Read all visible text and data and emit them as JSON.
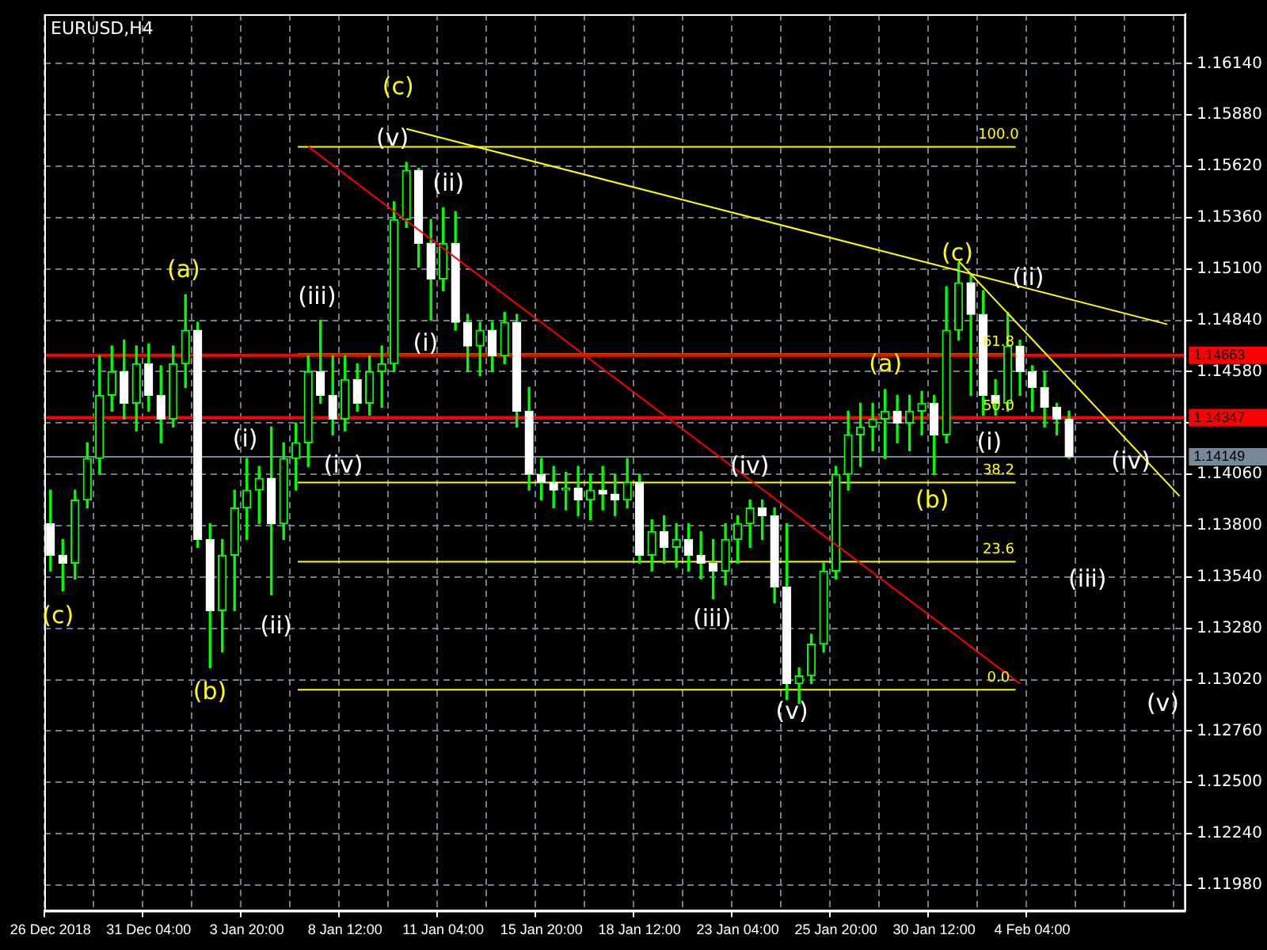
{
  "chart_data": {
    "type": "candlestick",
    "title": "EURUSD,H4",
    "categories": [
      "26 Dec 2018",
      null,
      null,
      null,
      null,
      null,
      null,
      null,
      "31 Dec 04:00",
      null,
      null,
      null,
      null,
      null,
      null,
      null,
      "3 Jan 20:00",
      null,
      null,
      null,
      null,
      null,
      null,
      null,
      "8 Jan 12:00",
      null,
      null,
      null,
      null,
      null,
      null,
      null,
      "11 Jan 04:00",
      null,
      null,
      null,
      null,
      null,
      null,
      null,
      "15 Jan 20:00",
      null,
      null,
      null,
      null,
      null,
      null,
      null,
      "18 Jan 12:00",
      null,
      null,
      null,
      null,
      null,
      null,
      null,
      "23 Jan 04:00",
      null,
      null,
      null,
      null,
      null,
      null,
      null,
      "25 Jan 20:00",
      null,
      null,
      null,
      null,
      null,
      null,
      null,
      "30 Jan 12:00",
      null,
      null,
      null,
      null,
      null,
      null,
      null,
      "4 Feb 04:00",
      null,
      null,
      null,
      null,
      null,
      null,
      null,
      null,
      null,
      null,
      null,
      null
    ],
    "color": "#00ff00",
    "colors": [
      "#ffffff",
      "#ffffff",
      "#00ff00",
      "#00ff00",
      "#00ff00",
      "#00ff00",
      "#ffffff",
      "#00ff00",
      "#ffffff",
      "#ffffff",
      "#00ff00",
      "#00ff00",
      "#ffffff",
      "#ffffff",
      "#00ff00",
      "#00ff00",
      "#00ff00",
      "#00ff00",
      "#ffffff",
      "#00ff00",
      "#00ff00",
      "#00ff00",
      "#ffffff",
      "#ffffff",
      "#00ff00",
      "#ffffff",
      "#00ff00",
      "#00ff00",
      "#00ff00",
      "#00ff00",
      "#ffffff",
      "#ffffff",
      "#00ff00",
      "#ffffff",
      "#ffffff",
      "#00ff00",
      "#ffffff",
      "#00ff00",
      "#ffffff",
      "#ffffff",
      "#ffffff",
      "#ffffff",
      "#00ff00",
      "#ffffff",
      "#00ff00",
      "#ffffff",
      "#ffffff",
      "#00ff00",
      "#ffffff",
      "#00ff00",
      "#ffffff",
      "#00ff00",
      "#ffffff",
      "#ffffff",
      "#ffffff",
      "#00ff00",
      "#00ff00",
      "#00ff00",
      "#ffffff",
      "#ffffff",
      "#ffffff",
      "#00ff00",
      "#00ff00",
      "#00ff00",
      "#00ff00",
      "#00ff00",
      "#00ff00",
      "#00ff00",
      "#00ff00",
      "#ffffff",
      "#00ff00",
      "#00ff00",
      "#ffffff",
      "#00ff00",
      "#00ff00",
      "#ffffff",
      "#ffffff",
      "#ffffff",
      "#00ff00",
      "#ffffff",
      "#ffffff",
      "#ffffff",
      "#ffffff",
      "#ffffff",
      null,
      null,
      null,
      null,
      null,
      null,
      null,
      null,
      null
    ],
    "ohlc": [
      [
        1.1381,
        1.1398,
        1.1357,
        1.1365
      ],
      [
        1.1365,
        1.1373,
        1.1347,
        1.1361
      ],
      [
        1.1361,
        1.1398,
        1.1353,
        1.1393
      ],
      [
        1.1393,
        1.1422,
        1.1389,
        1.1414
      ],
      [
        1.1414,
        1.1466,
        1.1406,
        1.1446
      ],
      [
        1.1446,
        1.1471,
        1.1438,
        1.1458
      ],
      [
        1.1458,
        1.1474,
        1.1434,
        1.1442
      ],
      [
        1.1442,
        1.1471,
        1.1428,
        1.1462
      ],
      [
        1.1462,
        1.1472,
        1.1438,
        1.1446
      ],
      [
        1.1446,
        1.1461,
        1.1422,
        1.1434
      ],
      [
        1.1434,
        1.1471,
        1.143,
        1.1462
      ],
      [
        1.1462,
        1.1497,
        1.145,
        1.1479
      ],
      [
        1.1479,
        1.1483,
        1.1369,
        1.1373
      ],
      [
        1.1373,
        1.1381,
        1.1308,
        1.1337
      ],
      [
        1.1337,
        1.1373,
        1.1316,
        1.1365
      ],
      [
        1.1365,
        1.1398,
        1.1337,
        1.1389
      ],
      [
        1.1389,
        1.1414,
        1.1373,
        1.1398
      ],
      [
        1.1398,
        1.141,
        1.1381,
        1.1404
      ],
      [
        1.1404,
        1.143,
        1.1345,
        1.1381
      ],
      [
        1.1381,
        1.1422,
        1.1373,
        1.1414
      ],
      [
        1.1414,
        1.1432,
        1.1398,
        1.1422
      ],
      [
        1.1422,
        1.1466,
        1.141,
        1.1458
      ],
      [
        1.1458,
        1.1484,
        1.1442,
        1.1446
      ],
      [
        1.1446,
        1.1466,
        1.1426,
        1.1434
      ],
      [
        1.1434,
        1.1466,
        1.1428,
        1.1454
      ],
      [
        1.1454,
        1.1462,
        1.1438,
        1.1442
      ],
      [
        1.1442,
        1.1466,
        1.1436,
        1.1458
      ],
      [
        1.1458,
        1.1471,
        1.144,
        1.1462
      ],
      [
        1.1462,
        1.1544,
        1.1458,
        1.1535
      ],
      [
        1.1535,
        1.1564,
        1.1531,
        1.156
      ],
      [
        1.156,
        1.1561,
        1.1511,
        1.1523
      ],
      [
        1.1523,
        1.1535,
        1.1484,
        1.1505
      ],
      [
        1.1505,
        1.1541,
        1.1499,
        1.1523
      ],
      [
        1.1523,
        1.1539,
        1.1479,
        1.1483
      ],
      [
        1.1483,
        1.1487,
        1.1458,
        1.1471
      ],
      [
        1.1471,
        1.1483,
        1.1456,
        1.1479
      ],
      [
        1.1479,
        1.1483,
        1.1458,
        1.1466
      ],
      [
        1.1466,
        1.1488,
        1.1462,
        1.1483
      ],
      [
        1.1483,
        1.1487,
        1.143,
        1.1438
      ],
      [
        1.1438,
        1.145,
        1.1398,
        1.1406
      ],
      [
        1.1406,
        1.1414,
        1.1393,
        1.1402
      ],
      [
        1.1402,
        1.141,
        1.1389,
        1.1398
      ],
      [
        1.1398,
        1.1407,
        1.1388,
        1.1399
      ],
      [
        1.1399,
        1.141,
        1.1385,
        1.1393
      ],
      [
        1.1393,
        1.1406,
        1.1383,
        1.1398
      ],
      [
        1.1398,
        1.141,
        1.1388,
        1.1396
      ],
      [
        1.1396,
        1.1406,
        1.1385,
        1.1393
      ],
      [
        1.1393,
        1.1414,
        1.1389,
        1.1402
      ],
      [
        1.1402,
        1.1406,
        1.1361,
        1.1365
      ],
      [
        1.1365,
        1.1383,
        1.1357,
        1.1377
      ],
      [
        1.1377,
        1.1385,
        1.1361,
        1.1369
      ],
      [
        1.1369,
        1.1381,
        1.1359,
        1.1373
      ],
      [
        1.1373,
        1.1381,
        1.1357,
        1.1365
      ],
      [
        1.1365,
        1.1377,
        1.1353,
        1.1361
      ],
      [
        1.1361,
        1.1373,
        1.1343,
        1.1357
      ],
      [
        1.1357,
        1.1381,
        1.135,
        1.1373
      ],
      [
        1.1373,
        1.1385,
        1.1361,
        1.1381
      ],
      [
        1.1381,
        1.1393,
        1.1369,
        1.1389
      ],
      [
        1.1389,
        1.1393,
        1.1373,
        1.1385
      ],
      [
        1.1385,
        1.1389,
        1.1341,
        1.1349
      ],
      [
        1.1349,
        1.1381,
        1.1292,
        1.13
      ],
      [
        1.13,
        1.1308,
        1.129,
        1.1304
      ],
      [
        1.1304,
        1.1325,
        1.13,
        1.132
      ],
      [
        1.132,
        1.1361,
        1.1316,
        1.1357
      ],
      [
        1.1357,
        1.141,
        1.1353,
        1.1406
      ],
      [
        1.1406,
        1.1438,
        1.1398,
        1.1426
      ],
      [
        1.1426,
        1.1442,
        1.141,
        1.143
      ],
      [
        1.143,
        1.1442,
        1.1418,
        1.1434
      ],
      [
        1.1434,
        1.1449,
        1.1414,
        1.1438
      ],
      [
        1.1438,
        1.1446,
        1.1422,
        1.1432
      ],
      [
        1.1432,
        1.1446,
        1.1418,
        1.1438
      ],
      [
        1.1438,
        1.1448,
        1.1426,
        1.1442
      ],
      [
        1.1442,
        1.1446,
        1.1406,
        1.1426
      ],
      [
        1.1426,
        1.1501,
        1.1422,
        1.1479
      ],
      [
        1.1479,
        1.1513,
        1.1474,
        1.1503
      ],
      [
        1.1503,
        1.1507,
        1.1446,
        1.1487
      ],
      [
        1.1487,
        1.1499,
        1.1436,
        1.1446
      ],
      [
        1.1446,
        1.1454,
        1.1436,
        1.1442
      ],
      [
        1.1442,
        1.1488,
        1.1438,
        1.1471
      ],
      [
        1.1471,
        1.1474,
        1.1446,
        1.1458
      ],
      [
        1.1458,
        1.1461,
        1.1438,
        1.145
      ],
      [
        1.145,
        1.1458,
        1.143,
        1.144
      ],
      [
        1.144,
        1.1442,
        1.1426,
        1.1434
      ],
      [
        1.1434,
        1.1438,
        1.1414,
        1.1415
      ],
      null,
      null,
      null,
      null,
      null,
      null,
      null,
      null,
      null
    ],
    "series": [
      {
        "type": "line",
        "color": "#ff0000",
        "values": [
          null,
          null,
          null,
          null,
          null,
          null,
          null,
          null,
          null,
          null,
          null,
          null,
          null,
          null,
          null,
          null,
          null,
          null,
          null,
          null,
          null,
          1.1572,
          null,
          null,
          null,
          null,
          null,
          null,
          null,
          null,
          null,
          null,
          null,
          null,
          null,
          null,
          null,
          null,
          null,
          null,
          null,
          null,
          null,
          null,
          null,
          null,
          null,
          null,
          null,
          null,
          null,
          null,
          null,
          null,
          null,
          null,
          null,
          null,
          null,
          null,
          null,
          null,
          null,
          null,
          null,
          null,
          null,
          null,
          null,
          null,
          null,
          null,
          null,
          null,
          null,
          null,
          null,
          null,
          null,
          1.13,
          null,
          null,
          null,
          null,
          null,
          null,
          null,
          null,
          null,
          null,
          null,
          null,
          null
        ]
      },
      {
        "type": "line",
        "color": "#ffff00",
        "values": [
          null,
          null,
          null,
          null,
          null,
          null,
          null,
          null,
          null,
          null,
          null,
          null,
          null,
          null,
          null,
          null,
          null,
          null,
          null,
          null,
          null,
          null,
          null,
          null,
          null,
          null,
          null,
          null,
          null,
          1.1581,
          null,
          null,
          null,
          null,
          null,
          null,
          null,
          null,
          null,
          null,
          null,
          null,
          null,
          null,
          null,
          null,
          null,
          null,
          null,
          null,
          null,
          null,
          null,
          null,
          null,
          null,
          null,
          null,
          null,
          null,
          null,
          null,
          null,
          null,
          null,
          null,
          null,
          null,
          null,
          null,
          null,
          null,
          null,
          null,
          null,
          null,
          null,
          null,
          null,
          null,
          null,
          null,
          null,
          null,
          null,
          null,
          null,
          null,
          null,
          null,
          null,
          1.1482,
          null
        ]
      },
      {
        "type": "line",
        "color": "#ffff00",
        "values": [
          null,
          null,
          null,
          null,
          null,
          null,
          null,
          null,
          null,
          null,
          null,
          null,
          null,
          null,
          null,
          null,
          null,
          null,
          null,
          null,
          null,
          null,
          null,
          null,
          null,
          null,
          null,
          null,
          null,
          null,
          null,
          null,
          null,
          null,
          null,
          null,
          null,
          null,
          null,
          null,
          null,
          null,
          null,
          null,
          null,
          null,
          null,
          null,
          null,
          null,
          null,
          null,
          null,
          null,
          null,
          null,
          null,
          null,
          null,
          null,
          null,
          null,
          null,
          null,
          null,
          null,
          null,
          null,
          null,
          null,
          null,
          null,
          null,
          null,
          1.1514,
          null,
          null,
          null,
          null,
          null,
          null,
          null,
          null,
          null,
          null,
          null,
          null,
          null,
          null,
          null,
          null,
          null,
          1.1395
        ]
      }
    ],
    "ylim": [
      1.1185,
      1.1639
    ],
    "yticks": [
      {
        "value": 1.1198,
        "label": "1.11980"
      },
      {
        "value": 1.1224,
        "label": "1.12240"
      },
      {
        "value": 1.125,
        "label": "1.12500"
      },
      {
        "value": 1.1276,
        "label": "1.12760"
      },
      {
        "value": 1.1302,
        "label": "1.13020"
      },
      {
        "value": 1.1328,
        "label": "1.13280"
      },
      {
        "value": 1.1354,
        "label": "1.13540"
      },
      {
        "value": 1.138,
        "label": "1.13800"
      },
      {
        "value": 1.1406,
        "label": "1.14060"
      },
      {
        "value": 1.1432,
        "label": null
      },
      {
        "value": 1.1458,
        "label": "1.14580"
      },
      {
        "value": 1.1484,
        "label": "1.14840"
      },
      {
        "value": 1.151,
        "label": "1.15100"
      },
      {
        "value": 1.1536,
        "label": "1.15360"
      },
      {
        "value": 1.1562,
        "label": "1.15620"
      },
      {
        "value": 1.1588,
        "label": "1.15880"
      },
      {
        "value": 1.1614,
        "label": "1.16140"
      }
    ],
    "grid": true,
    "legend": false,
    "ref_lines": [
      {
        "axis": "y",
        "value": 1.15718,
        "color": "#ffff00"
      },
      {
        "axis": "y",
        "value": 1.14668,
        "color": "#ffff00"
      },
      {
        "axis": "y",
        "value": 1.14344,
        "color": "#ffff00"
      },
      {
        "axis": "y",
        "value": 1.14019,
        "color": "#ffff00"
      },
      {
        "axis": "y",
        "value": 1.13618,
        "color": "#ffff00"
      },
      {
        "axis": "y",
        "value": 1.12969,
        "color": "#ffff00"
      },
      {
        "axis": "y",
        "value": 1.14663,
        "label": "1.14663",
        "color": "#ff0000"
      },
      {
        "axis": "y",
        "value": 1.14347,
        "label": "1.14347",
        "color": "#ff0000"
      },
      {
        "axis": "y",
        "value": 1.14149,
        "label": "1.14149",
        "color": "#778899"
      }
    ],
    "annotations": [
      "(c)",
      "(a)",
      "(b)",
      "(i)",
      "(ii)",
      "(iii)",
      "(iv)",
      "(c)",
      "(v)",
      "(ii)",
      "(i)",
      "(iv)",
      "(iii)",
      "(v)",
      "(a)",
      "(b)",
      "(c)",
      "(ii)",
      "(i)",
      "(iv)",
      "(iii)",
      "(v)",
      {
        "text": "100.0",
        "y": 1.15718
      },
      {
        "text": "61.8",
        "y": 1.14668
      },
      {
        "text": "50.0",
        "y": 1.14344
      },
      {
        "text": "38.2",
        "y": 1.14019
      },
      {
        "text": "23.6",
        "y": 1.13618
      },
      {
        "text": "0.0",
        "y": 1.12969
      }
    ]
  }
}
